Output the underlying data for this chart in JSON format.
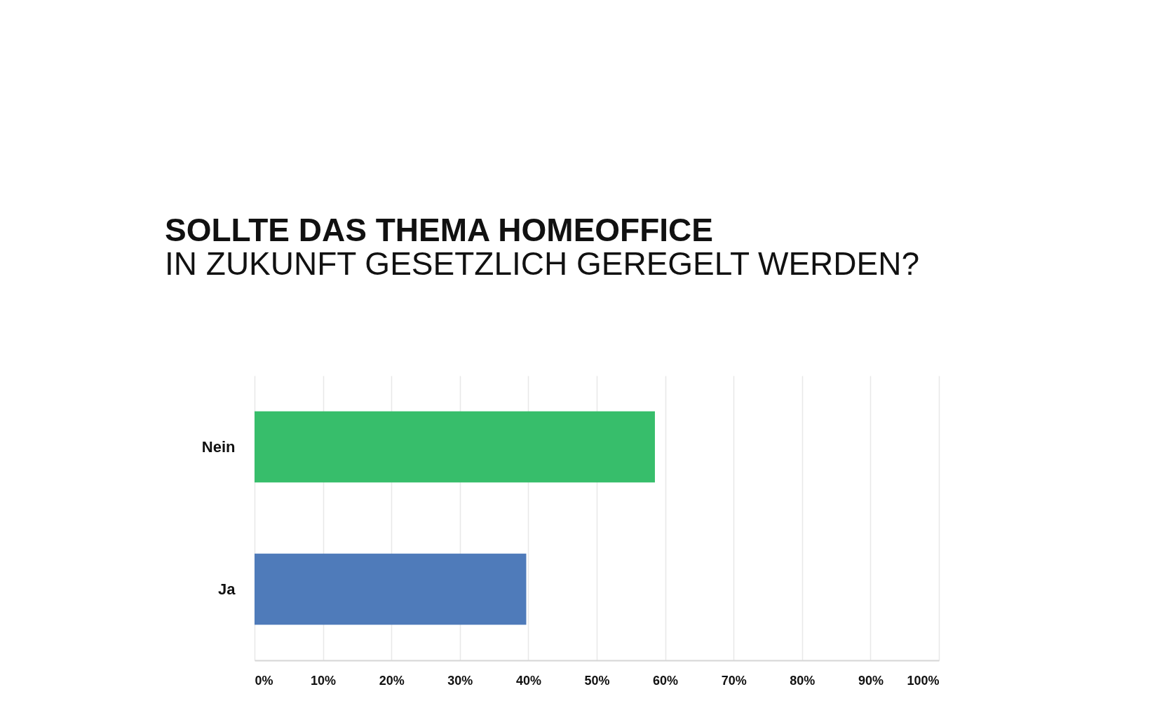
{
  "chart_data": {
    "type": "bar",
    "orientation": "horizontal",
    "title": "SOLLTE DAS THEMA HOMEOFFICE",
    "subtitle": "IN ZUKUNFT GESETZLICH GEREGELT WERDEN?",
    "categories": [
      "Nein",
      "Ja"
    ],
    "values": [
      58.5,
      39.7
    ],
    "colors": [
      "#37be6b",
      "#4f7bba"
    ],
    "xlim": [
      0,
      100
    ],
    "xticks": [
      {
        "value": 0,
        "label": "0%"
      },
      {
        "value": 10,
        "label": "10%"
      },
      {
        "value": 20,
        "label": "20%"
      },
      {
        "value": 30,
        "label": "30%"
      },
      {
        "value": 40,
        "label": "40%"
      },
      {
        "value": 50,
        "label": "50%"
      },
      {
        "value": 60,
        "label": "60%"
      },
      {
        "value": 70,
        "label": "70%"
      },
      {
        "value": 80,
        "label": "80%"
      },
      {
        "value": 90,
        "label": "90%"
      },
      {
        "value": 100,
        "label": "100%"
      }
    ],
    "grid": "x"
  }
}
